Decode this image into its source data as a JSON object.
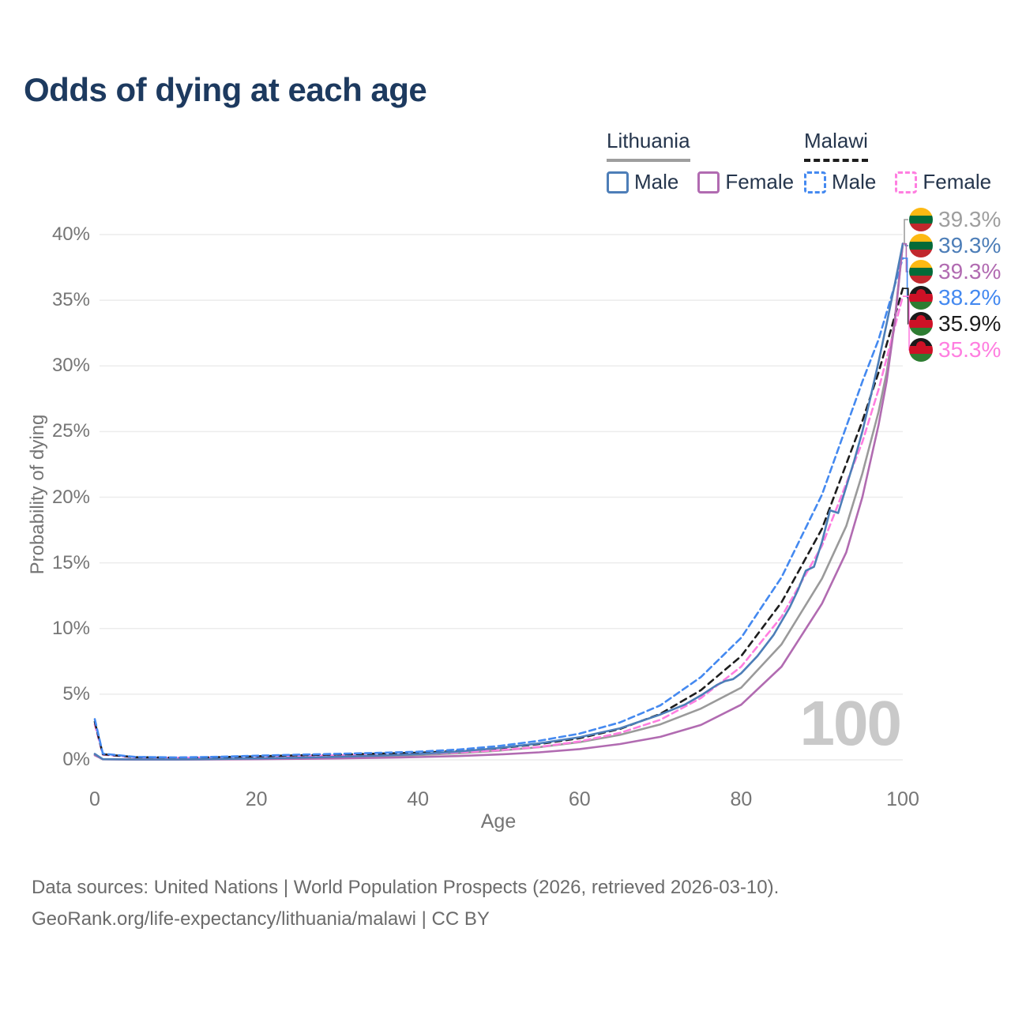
{
  "title": "Odds of dying at each age",
  "legend": {
    "groups": [
      {
        "title": "Lithuania",
        "line_style": "solid",
        "underline_color": "#9e9e9e",
        "items": [
          {
            "label": "Male",
            "color": "#4d7eb8"
          },
          {
            "label": "Female",
            "color": "#b16bb1"
          }
        ]
      },
      {
        "title": "Malawi",
        "line_style": "dashed",
        "underline_color": "#1d1d1d",
        "items": [
          {
            "label": "Male",
            "color": "#4489f0"
          },
          {
            "label": "Female",
            "color": "#ff7ee0"
          }
        ]
      }
    ]
  },
  "axes": {
    "y": {
      "label": "Probability of dying",
      "tick_labels": [
        "0%",
        "5%",
        "10%",
        "15%",
        "20%",
        "25%",
        "30%",
        "35%",
        "40%"
      ],
      "tick_values": [
        0,
        5,
        10,
        15,
        20,
        25,
        30,
        35,
        40
      ],
      "min": 0,
      "max": 40
    },
    "x": {
      "label": "Age",
      "tick_values": [
        0,
        20,
        40,
        60,
        80,
        100
      ],
      "min": 0,
      "max": 100
    }
  },
  "watermark": "100",
  "end_labels": [
    {
      "value": "39.3%",
      "country": "lithuania",
      "color": "#9e9e9e",
      "line_end": 39.3
    },
    {
      "value": "39.3%",
      "country": "lithuania",
      "color": "#4d7eb8",
      "line_end": 39.3
    },
    {
      "value": "39.3%",
      "country": "lithuania",
      "color": "#b16bb1",
      "line_end": 39.3
    },
    {
      "value": "38.2%",
      "country": "malawi",
      "color": "#4489f0",
      "line_end": 38.2
    },
    {
      "value": "35.9%",
      "country": "malawi",
      "color": "#1d1d1d",
      "line_end": 35.9
    },
    {
      "value": "35.3%",
      "country": "malawi",
      "color": "#ff7ee0",
      "line_end": 35.3
    }
  ],
  "flags": {
    "lithuania": [
      "#FDB913",
      "#046A38",
      "#C1272D"
    ],
    "malawi": [
      "#1a1a1a",
      "#CE1126",
      "#2e7d32"
    ]
  },
  "footer": {
    "line1": "Data sources: United Nations | World Population Prospects (2026, retrieved 2026-03-10).",
    "line2": "GeoRank.org/life-expectancy/lithuania/malawi | CC BY"
  },
  "chart_data": {
    "type": "line",
    "title": "Odds of dying at each age",
    "xlabel": "Age",
    "ylabel": "Probability of dying",
    "xlim": [
      0,
      100
    ],
    "ylim": [
      0,
      40
    ],
    "grid": "horizontal",
    "legend_position": "top-right",
    "unit": "percent",
    "series": [
      {
        "name": "Lithuania Both sexes",
        "country": "lithuania",
        "sex": "both",
        "color": "#9a9a9a",
        "dash": "none",
        "end_label": "39.3%",
        "points": [
          [
            0,
            0.4
          ],
          [
            1,
            0.05
          ],
          [
            5,
            0.03
          ],
          [
            10,
            0.03
          ],
          [
            15,
            0.05
          ],
          [
            20,
            0.09
          ],
          [
            25,
            0.13
          ],
          [
            30,
            0.18
          ],
          [
            35,
            0.26
          ],
          [
            40,
            0.36
          ],
          [
            45,
            0.5
          ],
          [
            50,
            0.7
          ],
          [
            55,
            0.97
          ],
          [
            60,
            1.35
          ],
          [
            65,
            1.9
          ],
          [
            70,
            2.7
          ],
          [
            75,
            3.9
          ],
          [
            80,
            5.5
          ],
          [
            85,
            8.8
          ],
          [
            90,
            13.8
          ],
          [
            93,
            17.8
          ],
          [
            95,
            21.8
          ],
          [
            97,
            26.5
          ],
          [
            98,
            29.5
          ],
          [
            99,
            33.5
          ],
          [
            100,
            39.3
          ]
        ]
      },
      {
        "name": "Malawi Female",
        "country": "malawi",
        "sex": "female",
        "color": "#ff7ee0",
        "dash": "8 5",
        "end_label": "35.3%",
        "points": [
          [
            0,
            2.7
          ],
          [
            1,
            0.4
          ],
          [
            5,
            0.18
          ],
          [
            10,
            0.15
          ],
          [
            15,
            0.18
          ],
          [
            20,
            0.23
          ],
          [
            25,
            0.28
          ],
          [
            30,
            0.34
          ],
          [
            35,
            0.39
          ],
          [
            40,
            0.45
          ],
          [
            45,
            0.56
          ],
          [
            50,
            0.73
          ],
          [
            55,
            0.98
          ],
          [
            60,
            1.4
          ],
          [
            65,
            2.05
          ],
          [
            70,
            3.05
          ],
          [
            75,
            4.7
          ],
          [
            80,
            7.1
          ],
          [
            85,
            10.9
          ],
          [
            90,
            16.3
          ],
          [
            95,
            24.2
          ],
          [
            97,
            28.2
          ],
          [
            100,
            35.3
          ]
        ]
      },
      {
        "name": "Malawi Both sexes",
        "country": "malawi",
        "sex": "both",
        "color": "#1d1d1d",
        "dash": "8 6",
        "end_label": "35.9%",
        "points": [
          [
            0,
            2.9
          ],
          [
            1,
            0.43
          ],
          [
            5,
            0.2
          ],
          [
            10,
            0.17
          ],
          [
            15,
            0.2
          ],
          [
            20,
            0.27
          ],
          [
            25,
            0.34
          ],
          [
            30,
            0.41
          ],
          [
            35,
            0.47
          ],
          [
            40,
            0.54
          ],
          [
            45,
            0.67
          ],
          [
            50,
            0.88
          ],
          [
            55,
            1.2
          ],
          [
            60,
            1.65
          ],
          [
            65,
            2.35
          ],
          [
            70,
            3.5
          ],
          [
            75,
            5.3
          ],
          [
            80,
            7.9
          ],
          [
            85,
            12.0
          ],
          [
            90,
            17.6
          ],
          [
            95,
            25.8
          ],
          [
            97,
            29.5
          ],
          [
            100,
            35.9
          ]
        ]
      },
      {
        "name": "Malawi Male",
        "country": "malawi",
        "sex": "male",
        "color": "#4489f0",
        "dash": "8 5",
        "end_label": "38.2%",
        "points": [
          [
            0,
            3.1
          ],
          [
            1,
            0.47
          ],
          [
            5,
            0.22
          ],
          [
            10,
            0.18
          ],
          [
            15,
            0.23
          ],
          [
            20,
            0.31
          ],
          [
            25,
            0.39
          ],
          [
            30,
            0.46
          ],
          [
            35,
            0.53
          ],
          [
            40,
            0.62
          ],
          [
            45,
            0.78
          ],
          [
            50,
            1.05
          ],
          [
            55,
            1.45
          ],
          [
            60,
            2.0
          ],
          [
            65,
            2.85
          ],
          [
            70,
            4.15
          ],
          [
            75,
            6.3
          ],
          [
            80,
            9.3
          ],
          [
            85,
            13.9
          ],
          [
            90,
            20.2
          ],
          [
            95,
            28.8
          ],
          [
            97,
            32.0
          ],
          [
            100,
            38.2
          ]
        ]
      },
      {
        "name": "Lithuania Female",
        "country": "lithuania",
        "sex": "female",
        "color": "#b16bb1",
        "dash": "none",
        "end_label": "39.3%",
        "points": [
          [
            0,
            0.35
          ],
          [
            1,
            0.04
          ],
          [
            5,
            0.02
          ],
          [
            10,
            0.02
          ],
          [
            15,
            0.03
          ],
          [
            20,
            0.05
          ],
          [
            25,
            0.08
          ],
          [
            30,
            0.11
          ],
          [
            35,
            0.15
          ],
          [
            40,
            0.21
          ],
          [
            45,
            0.29
          ],
          [
            50,
            0.41
          ],
          [
            55,
            0.57
          ],
          [
            60,
            0.82
          ],
          [
            65,
            1.2
          ],
          [
            70,
            1.75
          ],
          [
            75,
            2.65
          ],
          [
            80,
            4.2
          ],
          [
            85,
            7.1
          ],
          [
            90,
            11.9
          ],
          [
            93,
            15.8
          ],
          [
            95,
            20.0
          ],
          [
            97,
            25.5
          ],
          [
            98,
            28.8
          ],
          [
            99,
            33.3
          ],
          [
            100,
            39.3
          ]
        ]
      },
      {
        "name": "Lithuania Male",
        "country": "lithuania",
        "sex": "male",
        "color": "#4d7eb8",
        "dash": "none",
        "end_label": "39.3%",
        "points": [
          [
            0,
            0.45
          ],
          [
            1,
            0.05
          ],
          [
            5,
            0.03
          ],
          [
            10,
            0.03
          ],
          [
            15,
            0.06
          ],
          [
            20,
            0.11
          ],
          [
            25,
            0.16
          ],
          [
            30,
            0.23
          ],
          [
            35,
            0.32
          ],
          [
            40,
            0.44
          ],
          [
            45,
            0.63
          ],
          [
            50,
            0.9
          ],
          [
            55,
            1.25
          ],
          [
            60,
            1.72
          ],
          [
            65,
            2.4
          ],
          [
            70,
            3.45
          ],
          [
            73,
            4.2
          ],
          [
            75,
            4.9
          ],
          [
            77,
            5.7
          ],
          [
            78,
            6.0
          ],
          [
            79,
            6.15
          ],
          [
            80,
            6.6
          ],
          [
            82,
            7.9
          ],
          [
            84,
            9.5
          ],
          [
            86,
            11.6
          ],
          [
            87,
            12.9
          ],
          [
            88,
            14.4
          ],
          [
            89,
            14.7
          ],
          [
            90,
            16.6
          ],
          [
            91,
            19.0
          ],
          [
            92,
            18.8
          ],
          [
            93,
            20.8
          ],
          [
            94,
            22.8
          ],
          [
            95,
            25.0
          ],
          [
            96,
            27.6
          ],
          [
            97,
            30.3
          ],
          [
            98,
            33.2
          ],
          [
            99,
            36.2
          ],
          [
            100,
            39.3
          ]
        ]
      }
    ]
  }
}
